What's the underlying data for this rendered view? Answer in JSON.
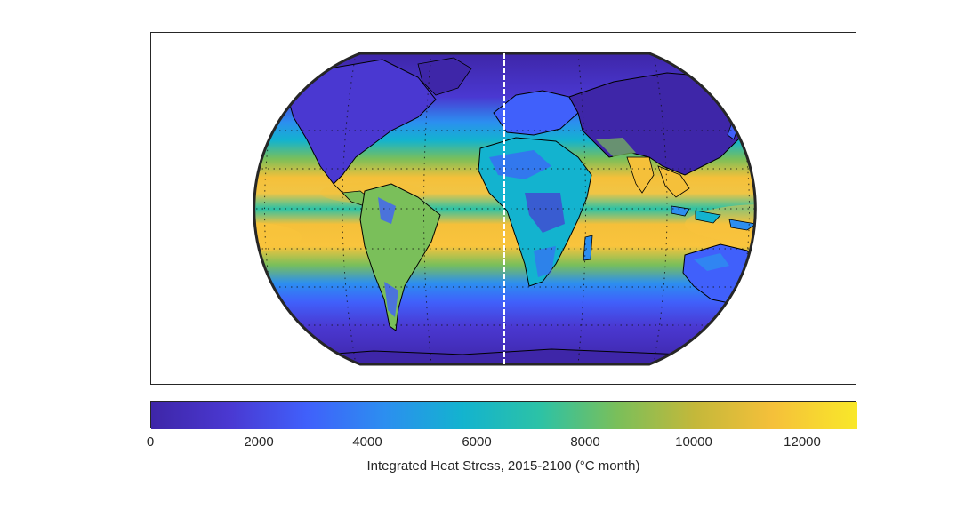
{
  "map": {
    "projection": "Eckert IV",
    "variable": "Integrated Heat Stress",
    "meridian_marker": "white vertical line near prime meridian",
    "graticule": "dotted"
  },
  "colorbar": {
    "title": "Integrated Heat Stress, 2015-2100 (°C month)",
    "range": [
      0,
      13000
    ],
    "ticks": [
      {
        "value": 0,
        "label": "0"
      },
      {
        "value": 2000,
        "label": "2000"
      },
      {
        "value": 4000,
        "label": "4000"
      },
      {
        "value": 6000,
        "label": "6000"
      },
      {
        "value": 8000,
        "label": "8000"
      },
      {
        "value": 10000,
        "label": "10000"
      },
      {
        "value": 12000,
        "label": "12000"
      }
    ],
    "colors": [
      "#3e26a8",
      "#4a38d1",
      "#4060fb",
      "#2c8ef0",
      "#13b3cf",
      "#2cc2a6",
      "#7abf5a",
      "#c4b83a",
      "#f5c03a",
      "#f9e829"
    ]
  }
}
